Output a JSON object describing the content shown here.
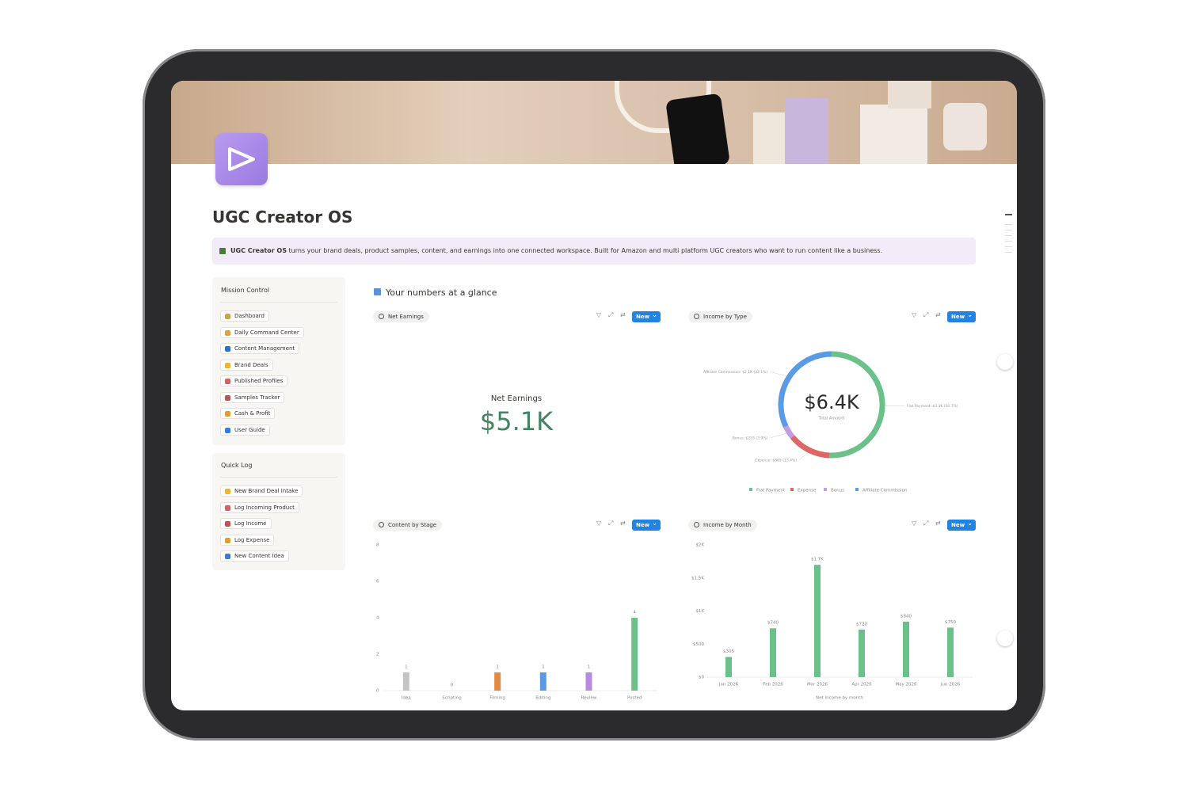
{
  "page": {
    "title": "UGC Creator OS",
    "callout": {
      "bold": "UGC Creator OS",
      "text": " turns your brand deals, product samples, content, and earnings into one connected workspace. Built for Amazon and multi platform UGC creators who want to run content like a business."
    }
  },
  "sidebar": [
    {
      "title": "Mission Control",
      "items": [
        "Dashboard",
        "Daily Command Center",
        "Content Management",
        "Brand Deals",
        "Published Profiles",
        "Samples Tracker",
        "Cash & Profit",
        "User Guide"
      ]
    },
    {
      "title": "Quick Log",
      "items": [
        "New Brand Deal Intake",
        "Log Incoming Product",
        "Log Income",
        "Log Expense",
        "New Content Idea"
      ]
    }
  ],
  "section_title": "Your numbers at a glance",
  "views": [
    {
      "tab": "Net Earnings",
      "button": "New"
    },
    {
      "tab": "Income by Type",
      "button": "New"
    },
    {
      "tab": "Content by Stage",
      "button": "New"
    },
    {
      "tab": "Income by Month",
      "button": "New"
    }
  ],
  "chart_data": [
    {
      "type": "kpi",
      "title": "Net Earnings",
      "value": 5100,
      "value_label": "$5.1K",
      "color": "#448361"
    },
    {
      "type": "donut",
      "total": 6400,
      "total_label": "$6.4K",
      "center_caption": "Total Amount",
      "categories": [
        "Flat Payment",
        "Expense",
        "Bonus",
        "Affiliate Commission"
      ],
      "values": [
        50.7,
        13.4,
        3.9,
        32.1
      ],
      "value_labels": [
        "Flat Payment: $3.3K (50.7%)",
        "Expense: $865 (13.4%)",
        "Bonus: $255 (3.9%)",
        "Affiliate Commission: $2.1K (32.1%)"
      ],
      "colors": [
        "#6cc08a",
        "#e06666",
        "#c29be0",
        "#5b9be6"
      ],
      "legend": "bottom"
    },
    {
      "type": "bar",
      "categories": [
        "Idea",
        "Scripting",
        "Filming",
        "Editing",
        "Review",
        "Posted"
      ],
      "values": [
        1,
        0,
        1,
        1,
        1,
        4
      ],
      "colors": [
        "#c4c4c4",
        "#c4c4c4",
        "#e48a43",
        "#5b9be6",
        "#b88ae0",
        "#6cc08a"
      ],
      "ylim": [
        0,
        8
      ],
      "yticks": [
        0,
        2,
        4,
        6,
        8
      ],
      "data_labels": true
    },
    {
      "type": "bar",
      "categories": [
        "Jan 2026",
        "Feb 2026",
        "Mar 2026",
        "Apr 2026",
        "May 2026",
        "Jun 2026"
      ],
      "values": [
        305,
        740,
        1700,
        720,
        840,
        750
      ],
      "value_labels": [
        "$305",
        "$740",
        "$1.7K",
        "$720",
        "$840",
        "$750"
      ],
      "color": "#6cc08a",
      "xlabel": "Net income by month",
      "ylim": [
        0,
        2000
      ],
      "yticks": [
        {
          "value": 0,
          "label": "$0"
        },
        {
          "value": 500,
          "label": "$500"
        },
        {
          "value": 1000,
          "label": "$1K"
        },
        {
          "value": 1500,
          "label": "$1.5K"
        },
        {
          "value": 2000,
          "label": "$2K"
        }
      ],
      "data_labels": true
    }
  ]
}
